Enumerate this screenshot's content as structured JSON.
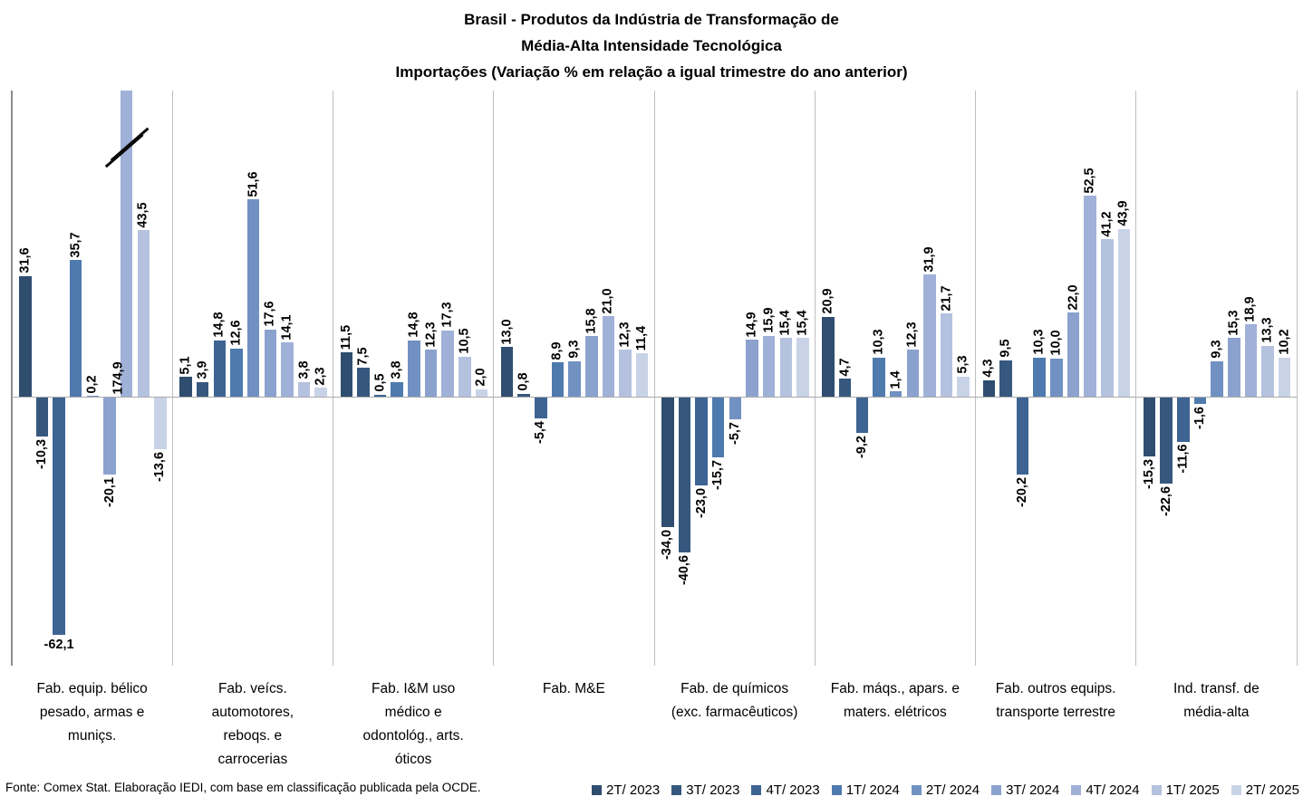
{
  "title": {
    "line1": "Brasil - Produtos da Indústria de Transformação de",
    "line2": "Média-Alta Intensidade Tecnológica",
    "line3": "Importações (Variação % em relação a igual trimestre do ano anterior)"
  },
  "footer": {
    "source": "Fonte: Comex Stat. Elaboração IEDI, com base em classificação publicada pela OCDE."
  },
  "chart_data": {
    "type": "bar",
    "title": "Brasil - Produtos da Indústria de Transformação de Média-Alta Intensidade Tecnológica — Importações (Variação % em relação a igual trimestre do ano anterior)",
    "unit": "%",
    "decimal_separator": ",",
    "grid": false,
    "legend_position": "bottom-right",
    "ylim_visible": [
      -70,
      80
    ],
    "categories": [
      [
        "Fab. equip. bélico",
        "pesado, armas e",
        "muniçs."
      ],
      [
        "Fab. veícs.",
        "automotores,",
        "reboqs. e",
        "carrocerias"
      ],
      [
        "Fab. I&M uso",
        "médico e",
        "odontológ., arts.",
        "óticos"
      ],
      [
        "Fab. M&E"
      ],
      [
        "Fab. de químicos",
        "(exc. farmacêuticos)"
      ],
      [
        "Fab. máqs., apars. e",
        "maters. elétricos"
      ],
      [
        "Fab. outros equips.",
        "transporte terrestre"
      ],
      [
        "Ind. transf. de",
        "média-alta"
      ]
    ],
    "series": [
      {
        "name": "2T/ 2023",
        "color": "#2F4D6F",
        "values": [
          31.6,
          5.1,
          11.5,
          13.0,
          -34.0,
          20.9,
          4.3,
          -15.3
        ]
      },
      {
        "name": "3T/ 2023",
        "color": "#36587F",
        "values": [
          -10.3,
          3.9,
          7.5,
          0.8,
          -40.6,
          4.7,
          9.5,
          -22.6
        ]
      },
      {
        "name": "4T/ 2023",
        "color": "#3E6493",
        "values": [
          -62.1,
          14.8,
          0.5,
          -5.4,
          -23.0,
          -9.2,
          -20.2,
          -11.6
        ]
      },
      {
        "name": "1T/ 2024",
        "color": "#4F7AAE",
        "values": [
          35.7,
          12.6,
          3.8,
          8.9,
          -15.7,
          10.3,
          10.3,
          -1.6
        ]
      },
      {
        "name": "2T/ 2024",
        "color": "#7191C2",
        "values": [
          0.2,
          51.6,
          14.8,
          9.3,
          -5.7,
          1.4,
          10.0,
          9.3
        ]
      },
      {
        "name": "3T/ 2024",
        "color": "#8BA2CE",
        "values": [
          -20.1,
          17.6,
          12.3,
          15.8,
          14.9,
          12.3,
          22.0,
          15.3
        ]
      },
      {
        "name": "4T/ 2024",
        "color": "#9FB1D7",
        "values": [
          174.9,
          14.1,
          17.3,
          21.0,
          15.9,
          31.9,
          52.5,
          18.9
        ]
      },
      {
        "name": "1T/ 2025",
        "color": "#B4C2E0",
        "values": [
          43.5,
          3.8,
          10.5,
          12.3,
          15.4,
          21.7,
          41.2,
          13.3
        ]
      },
      {
        "name": "2T/ 2025",
        "color": "#C9D3E8",
        "values": [
          -13.6,
          2.3,
          2.0,
          11.4,
          15.4,
          5.3,
          43.9,
          10.2
        ]
      }
    ],
    "annotations": {
      "axis_break": {
        "series_index": 6,
        "category_index": 0,
        "value": 174.9
      },
      "horizontal_label": {
        "series_index": 2,
        "category_index": 0,
        "value": -62.1
      }
    }
  }
}
